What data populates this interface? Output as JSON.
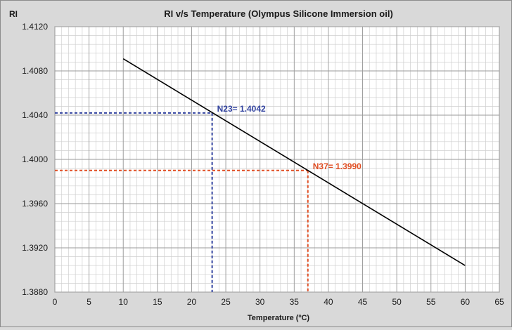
{
  "chart_data": {
    "type": "line",
    "title": "RI v/s Temperature (Olympus Silicone Immersion oil)",
    "ylabel": "RI",
    "xlabel": "Temperature (ºC)",
    "xlim": [
      0,
      65
    ],
    "ylim": [
      1.388,
      1.412
    ],
    "x_ticks": [
      0,
      5,
      10,
      15,
      20,
      25,
      30,
      35,
      40,
      45,
      50,
      55,
      60,
      65
    ],
    "x_tick_labels": [
      "0",
      "5",
      "10",
      "15",
      "20",
      "25",
      "30",
      "35",
      "40",
      "45",
      "50",
      "55",
      "60",
      "65"
    ],
    "y_ticks": [
      1.388,
      1.392,
      1.396,
      1.4,
      1.404,
      1.408,
      1.412
    ],
    "y_tick_labels": [
      "1.3880",
      "1.3920",
      "1.3960",
      "1.4000",
      "1.4040",
      "1.4080",
      "1.4120"
    ],
    "grid": true,
    "series": [
      {
        "name": "RI",
        "color": "#000000",
        "x": [
          10,
          60
        ],
        "y": [
          1.4091,
          1.3904
        ]
      }
    ],
    "annotations": [
      {
        "label": "N23= 1.4042",
        "x": 23,
        "y": 1.4042,
        "color": "#3344a0"
      },
      {
        "label": "N37= 1.3990",
        "x": 37,
        "y": 1.399,
        "color": "#e04e23"
      }
    ]
  }
}
